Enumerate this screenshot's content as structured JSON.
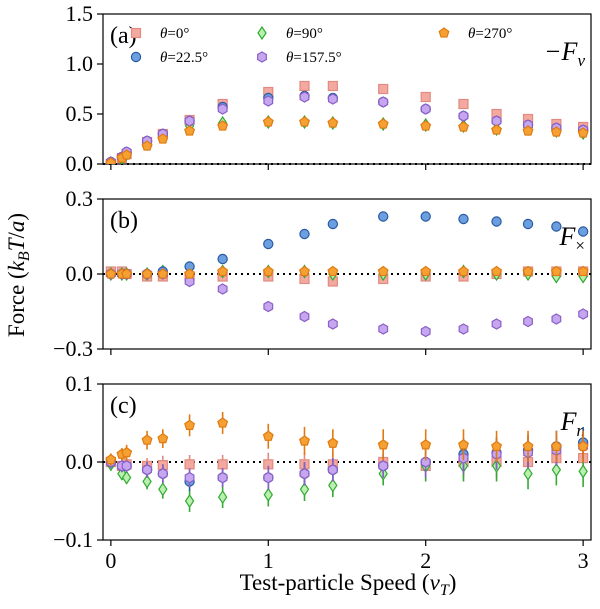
{
  "chart_data": {
    "type": "scatter",
    "xlabel": "Test-particle Speed (v_T)",
    "ylabel": "Force (k_B T/a)",
    "x": [
      0.0,
      0.07,
      0.1,
      0.23,
      0.33,
      0.5,
      0.71,
      1.0,
      1.23,
      1.41,
      1.73,
      2.0,
      2.24,
      2.45,
      2.65,
      2.83,
      3.0
    ],
    "xlim": [
      -0.05,
      3.05
    ],
    "xticks": [
      "0",
      "1",
      "2",
      "3"
    ],
    "xtick_values": [
      0,
      1,
      2,
      3
    ],
    "legend": [
      {
        "label": "θ=0°",
        "marker": "square",
        "face": "#f4a9a0",
        "edge": "#e08a80"
      },
      {
        "label": "θ=90°",
        "marker": "diamond",
        "face": "#b9f0b0",
        "edge": "#33aa33"
      },
      {
        "label": "θ=270°",
        "marker": "pentagon",
        "face": "#f5a033",
        "edge": "#e07a10"
      },
      {
        "label": "θ=22.5°",
        "marker": "circle",
        "face": "#6b9fe0",
        "edge": "#2a5aa0"
      },
      {
        "label": "θ=157.5°",
        "marker": "hexagon",
        "face": "#c7a6f0",
        "edge": "#8a60c8"
      }
    ],
    "panels": [
      {
        "letter": "(a)",
        "force_label": "−F",
        "force_sub": "v",
        "ylim": [
          0,
          1.5
        ],
        "yticks": [
          "0.0",
          "0.5",
          "1.0",
          "1.5"
        ],
        "ytick_values": [
          0,
          0.5,
          1.0,
          1.5
        ],
        "series": [
          {
            "name": "θ=0°",
            "values": [
              0.0,
              0.06,
              0.1,
              0.22,
              0.3,
              0.44,
              0.6,
              0.72,
              0.78,
              0.78,
              0.75,
              0.67,
              0.6,
              0.5,
              0.45,
              0.4,
              0.37
            ],
            "err": [
              0,
              0,
              0,
              0,
              0,
              0,
              0,
              0,
              0,
              0,
              0,
              0,
              0,
              0,
              0,
              0,
              0
            ]
          },
          {
            "name": "θ=22.5°",
            "values": [
              0.02,
              0.07,
              0.12,
              0.23,
              0.3,
              0.43,
              0.57,
              0.66,
              0.68,
              0.66,
              0.62,
              0.55,
              0.48,
              0.43,
              0.39,
              0.36,
              0.34
            ],
            "err": [
              0,
              0,
              0,
              0,
              0,
              0,
              0,
              0,
              0,
              0,
              0,
              0,
              0,
              0,
              0,
              0,
              0
            ]
          },
          {
            "name": "θ=90°",
            "values": [
              0.01,
              0.06,
              0.1,
              0.2,
              0.28,
              0.38,
              0.41,
              0.42,
              0.42,
              0.41,
              0.4,
              0.39,
              0.38,
              0.35,
              0.35,
              0.33,
              0.31
            ],
            "err": [
              0,
              0,
              0,
              0,
              0,
              0,
              0,
              0,
              0,
              0,
              0,
              0,
              0,
              0,
              0,
              0,
              0
            ]
          },
          {
            "name": "θ=157.5°",
            "values": [
              0.02,
              0.07,
              0.12,
              0.23,
              0.3,
              0.43,
              0.55,
              0.63,
              0.67,
              0.65,
              0.62,
              0.55,
              0.48,
              0.43,
              0.39,
              0.36,
              0.34
            ],
            "err": [
              0,
              0,
              0,
              0,
              0,
              0,
              0,
              0,
              0,
              0,
              0,
              0,
              0,
              0,
              0,
              0,
              0
            ]
          },
          {
            "name": "θ=270°",
            "values": [
              0.01,
              0.06,
              0.09,
              0.18,
              0.25,
              0.33,
              0.38,
              0.42,
              0.42,
              0.41,
              0.4,
              0.38,
              0.37,
              0.34,
              0.33,
              0.32,
              0.31
            ],
            "err": [
              0,
              0,
              0,
              0,
              0,
              0,
              0,
              0,
              0,
              0,
              0,
              0,
              0,
              0,
              0,
              0,
              0
            ]
          }
        ]
      },
      {
        "letter": "(b)",
        "force_label": "F",
        "force_sub": "×",
        "ylim": [
          -0.3,
          0.3
        ],
        "yticks": [
          "−0.3",
          "0.0",
          "0.3"
        ],
        "ytick_values": [
          -0.3,
          0.0,
          0.3
        ],
        "series": [
          {
            "name": "θ=0°",
            "values": [
              0.01,
              0.01,
              0.0,
              -0.01,
              -0.01,
              -0.01,
              -0.01,
              -0.01,
              -0.02,
              -0.03,
              -0.02,
              -0.01,
              -0.01,
              0.0,
              0.01,
              0.01,
              0.01
            ],
            "err": [
              0.01,
              0.01,
              0.01,
              0.01,
              0.01,
              0.01,
              0.01,
              0.01,
              0.01,
              0.01,
              0.02,
              0.02,
              0.02,
              0.02,
              0.02,
              0.02,
              0.02
            ]
          },
          {
            "name": "θ=22.5°",
            "values": [
              0.0,
              0.0,
              0.0,
              0.0,
              0.01,
              0.03,
              0.06,
              0.12,
              0.16,
              0.2,
              0.23,
              0.23,
              0.22,
              0.21,
              0.2,
              0.19,
              0.17
            ],
            "err": [
              0.01,
              0.01,
              0.01,
              0.01,
              0.01,
              0.01,
              0.01,
              0.01,
              0.01,
              0.01,
              0.01,
              0.01,
              0.01,
              0.01,
              0.01,
              0.01,
              0.01
            ]
          },
          {
            "name": "θ=90°",
            "values": [
              0.0,
              0.0,
              0.0,
              0.0,
              0.01,
              0.0,
              0.01,
              0.01,
              0.01,
              0.0,
              0.0,
              0.0,
              0.01,
              0.0,
              0.0,
              -0.01,
              -0.01
            ],
            "err": [
              0.01,
              0.01,
              0.01,
              0.01,
              0.01,
              0.01,
              0.01,
              0.01,
              0.01,
              0.01,
              0.01,
              0.01,
              0.01,
              0.01,
              0.01,
              0.01,
              0.01
            ]
          },
          {
            "name": "θ=157.5°",
            "values": [
              0.0,
              0.0,
              0.0,
              0.0,
              0.0,
              -0.03,
              -0.06,
              -0.13,
              -0.17,
              -0.2,
              -0.22,
              -0.23,
              -0.22,
              -0.2,
              -0.19,
              -0.18,
              -0.16
            ],
            "err": [
              0.01,
              0.01,
              0.01,
              0.01,
              0.01,
              0.01,
              0.01,
              0.01,
              0.01,
              0.01,
              0.01,
              0.01,
              0.01,
              0.01,
              0.01,
              0.01,
              0.01
            ]
          },
          {
            "name": "θ=270°",
            "values": [
              0.0,
              0.0,
              0.0,
              0.0,
              0.0,
              0.0,
              0.01,
              0.01,
              0.01,
              0.01,
              0.01,
              0.01,
              0.01,
              0.01,
              0.01,
              0.01,
              0.01
            ],
            "err": [
              0.01,
              0.01,
              0.01,
              0.01,
              0.01,
              0.01,
              0.01,
              0.01,
              0.01,
              0.01,
              0.01,
              0.01,
              0.01,
              0.01,
              0.01,
              0.01,
              0.01
            ]
          }
        ]
      },
      {
        "letter": "(c)",
        "force_label": "F",
        "force_sub": "n",
        "ylim": [
          -0.1,
          0.1
        ],
        "yticks": [
          "−0.1",
          "0.0",
          "0.1"
        ],
        "ytick_values": [
          -0.1,
          0.0,
          0.1
        ],
        "series": [
          {
            "name": "θ=0°",
            "values": [
              0.0,
              -0.005,
              -0.003,
              -0.005,
              -0.004,
              -0.003,
              -0.003,
              -0.003,
              -0.003,
              -0.003,
              0.0,
              -0.005,
              0.0,
              0.0,
              0.0,
              0.005,
              0.005
            ],
            "err": [
              0.008,
              0.008,
              0.008,
              0.01,
              0.012,
              0.012,
              0.012,
              0.015,
              0.015,
              0.015,
              0.015,
              0.02,
              0.02,
              0.02,
              0.02,
              0.02,
              0.02
            ]
          },
          {
            "name": "θ=22.5°",
            "values": [
              0.0,
              -0.005,
              -0.005,
              -0.01,
              -0.015,
              -0.025,
              -0.02,
              -0.02,
              -0.015,
              -0.01,
              -0.005,
              0.0,
              0.01,
              0.012,
              0.015,
              0.02,
              0.025
            ],
            "err": [
              0.008,
              0.008,
              0.008,
              0.01,
              0.012,
              0.012,
              0.012,
              0.015,
              0.015,
              0.015,
              0.015,
              0.02,
              0.02,
              0.02,
              0.02,
              0.02,
              0.02
            ]
          },
          {
            "name": "θ=90°",
            "values": [
              -0.003,
              -0.015,
              -0.02,
              -0.025,
              -0.035,
              -0.05,
              -0.045,
              -0.042,
              -0.035,
              -0.03,
              -0.015,
              -0.005,
              -0.005,
              -0.005,
              -0.015,
              -0.01,
              -0.012
            ],
            "err": [
              0.008,
              0.008,
              0.008,
              0.01,
              0.012,
              0.014,
              0.014,
              0.015,
              0.015,
              0.015,
              0.015,
              0.02,
              0.02,
              0.02,
              0.02,
              0.02,
              0.02
            ]
          },
          {
            "name": "θ=157.5°",
            "values": [
              0.0,
              -0.005,
              -0.005,
              -0.01,
              -0.015,
              -0.02,
              -0.02,
              -0.02,
              -0.015,
              -0.01,
              -0.005,
              0.0,
              0.005,
              0.01,
              0.012,
              0.015,
              0.02
            ],
            "err": [
              0.008,
              0.008,
              0.008,
              0.01,
              0.012,
              0.012,
              0.012,
              0.015,
              0.015,
              0.015,
              0.015,
              0.02,
              0.02,
              0.02,
              0.02,
              0.02,
              0.02
            ]
          },
          {
            "name": "θ=270°",
            "values": [
              0.003,
              0.01,
              0.012,
              0.028,
              0.03,
              0.047,
              0.05,
              0.033,
              0.027,
              0.024,
              0.022,
              0.022,
              0.022,
              0.02,
              0.02,
              0.02,
              0.02
            ],
            "err": [
              0.008,
              0.008,
              0.01,
              0.012,
              0.012,
              0.014,
              0.014,
              0.016,
              0.018,
              0.018,
              0.02,
              0.02,
              0.02,
              0.02,
              0.02,
              0.02,
              0.02
            ]
          }
        ]
      }
    ]
  }
}
